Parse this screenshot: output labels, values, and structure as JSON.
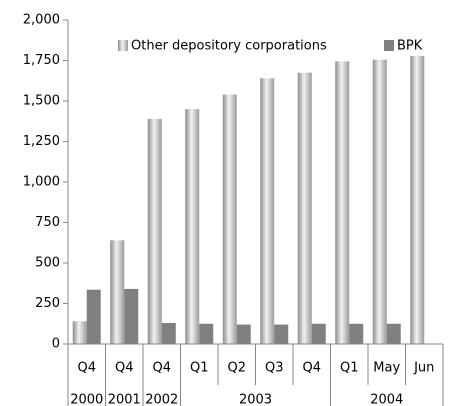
{
  "chart_data": {
    "type": "bar",
    "categories": [
      "Q4",
      "Q4",
      "Q4",
      "Q1",
      "Q2",
      "Q3",
      "Q4",
      "Q1",
      "May",
      "Jun"
    ],
    "groups": [
      {
        "label": "2000",
        "count": 1
      },
      {
        "label": "2001",
        "count": 1
      },
      {
        "label": "2002",
        "count": 1
      },
      {
        "label": "2003",
        "count": 4
      },
      {
        "label": "2004",
        "count": 3
      }
    ],
    "series": [
      {
        "name": "Other depository corporations",
        "color": "#b0b0b0",
        "values": [
          140,
          640,
          1390,
          1450,
          1540,
          1640,
          1675,
          1745,
          1755,
          1800
        ]
      },
      {
        "name": "BPK",
        "color": "#808080",
        "values": [
          335,
          340,
          130,
          125,
          120,
          120,
          125,
          125,
          125,
          null
        ]
      }
    ],
    "ylim": [
      0,
      2000
    ],
    "yticks": [
      0,
      250,
      500,
      750,
      {
        "value": 1000,
        "label": "1,000"
      },
      {
        "value": 1250,
        "label": "1,250"
      },
      {
        "value": 1500,
        "label": "1,500"
      },
      {
        "value": 1750,
        "label": "1,750"
      },
      {
        "value": 2000,
        "label": "2,000"
      }
    ],
    "legend": "top"
  }
}
